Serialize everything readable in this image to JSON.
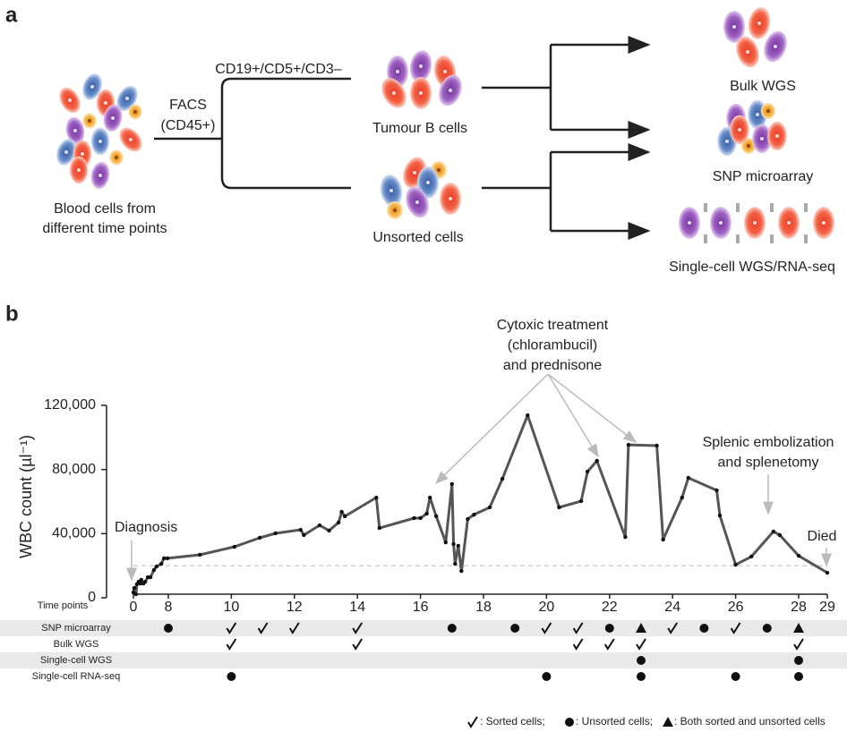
{
  "panel_a": {
    "label": "a",
    "source": [
      "Blood cells from",
      "different time points"
    ],
    "sort": [
      "FACS",
      "(CD45+)"
    ],
    "gate": "CD19+/CD5+/CD3–",
    "tumour": "Tumour B cells",
    "unsorted": "Unsorted cells",
    "outputs": [
      "Bulk WGS",
      "SNP microarray",
      "Single-cell WGS/RNA-seq"
    ]
  },
  "chart_data": {
    "type": "line",
    "panel_label": "b",
    "y_label": "WBC count (µl⁻¹)",
    "x_label": "Time points",
    "color": "#555555",
    "x": [
      0,
      0.2,
      0.6,
      0.8,
      1.2,
      1.6,
      1.8,
      2.3,
      2.7,
      3.3,
      3.9,
      4.7,
      5.3,
      6.4,
      7.0,
      7.8,
      9.0,
      10.1,
      10.9,
      11.4,
      12.2,
      12.3,
      12.8,
      13.1,
      13.4,
      13.5,
      13.6,
      14.6,
      14.7,
      15.8,
      16.0,
      16.2,
      16.3,
      16.5,
      16.8,
      17.0,
      17.05,
      17.1,
      17.2,
      17.3,
      17.5,
      17.7,
      18.2,
      18.6,
      19.4,
      20.4,
      21.1,
      21.3,
      21.6,
      22.5,
      22.6,
      23.5,
      23.7,
      24.3,
      24.5,
      25.4,
      25.5,
      26.0,
      26.5,
      27.2,
      27.4,
      28.0,
      29.0
    ],
    "values": [
      3300,
      6100,
      2200,
      8400,
      10000,
      8900,
      11200,
      8900,
      10000,
      12800,
      12800,
      17300,
      19500,
      21200,
      24600,
      24600,
      26800,
      31800,
      37400,
      40200,
      42400,
      39100,
      45200,
      41900,
      46900,
      53600,
      50800,
      62500,
      43500,
      49700,
      49700,
      52500,
      62500,
      50800,
      34600,
      70900,
      33500,
      21200,
      32400,
      16700,
      49100,
      51900,
      56400,
      74200,
      113800,
      56400,
      60300,
      78700,
      85400,
      37900,
      95400,
      94900,
      36300,
      62500,
      74800,
      67000,
      51300,
      20600,
      25700,
      41300,
      39100,
      26200,
      15600
    ],
    "ylim": [
      0,
      120000
    ],
    "yticks": [
      0,
      {
        "value": 40000,
        "label": "40,000"
      },
      {
        "value": 80000,
        "label": "80,000"
      },
      {
        "value": 120000,
        "label": "120,000"
      }
    ],
    "xlim": [
      0,
      29
    ],
    "xticks": [
      0,
      8,
      10,
      12,
      14,
      16,
      18,
      20,
      22,
      24,
      26,
      28,
      29
    ],
    "threshold": 20000,
    "annotations": [
      [
        "Diagnosis"
      ],
      [
        "Cytoxic treatment",
        "(chlorambucil)",
        "and prednisone"
      ],
      [
        "Splenic embolization",
        "and splenetomy"
      ],
      [
        "Died"
      ]
    ],
    "samples": [
      {
        "name": "SNP microarray",
        "points": [
          8,
          10,
          11,
          12,
          14,
          17,
          19,
          20,
          21,
          22,
          23,
          24,
          25,
          26,
          27,
          28
        ],
        "kinds": [
          "unsorted",
          "sorted",
          "sorted",
          "sorted",
          "sorted",
          "unsorted",
          "unsorted",
          "sorted",
          "sorted",
          "unsorted",
          "both",
          "sorted",
          "unsorted",
          "sorted",
          "unsorted",
          "both"
        ]
      },
      {
        "name": "Bulk WGS",
        "points": [
          10,
          14,
          21,
          22,
          23,
          28
        ],
        "kinds": [
          "sorted",
          "sorted",
          "sorted",
          "sorted",
          "sorted",
          "sorted"
        ]
      },
      {
        "name": "Single-cell WGS",
        "points": [
          23,
          28
        ],
        "kinds": [
          "unsorted",
          "unsorted"
        ]
      },
      {
        "name": "Single-cell RNA-seq",
        "points": [
          10,
          20,
          23,
          26,
          28
        ],
        "kinds": [
          "unsorted",
          "unsorted",
          "unsorted",
          "unsorted",
          "unsorted"
        ]
      }
    ],
    "legend": [
      {
        "symbol": "sorted",
        "label": ": Sorted cells;"
      },
      {
        "symbol": "unsorted",
        "label": ": Unsorted cells;"
      },
      {
        "symbol": "both",
        "label": ": Both sorted and unsorted cells"
      }
    ]
  }
}
